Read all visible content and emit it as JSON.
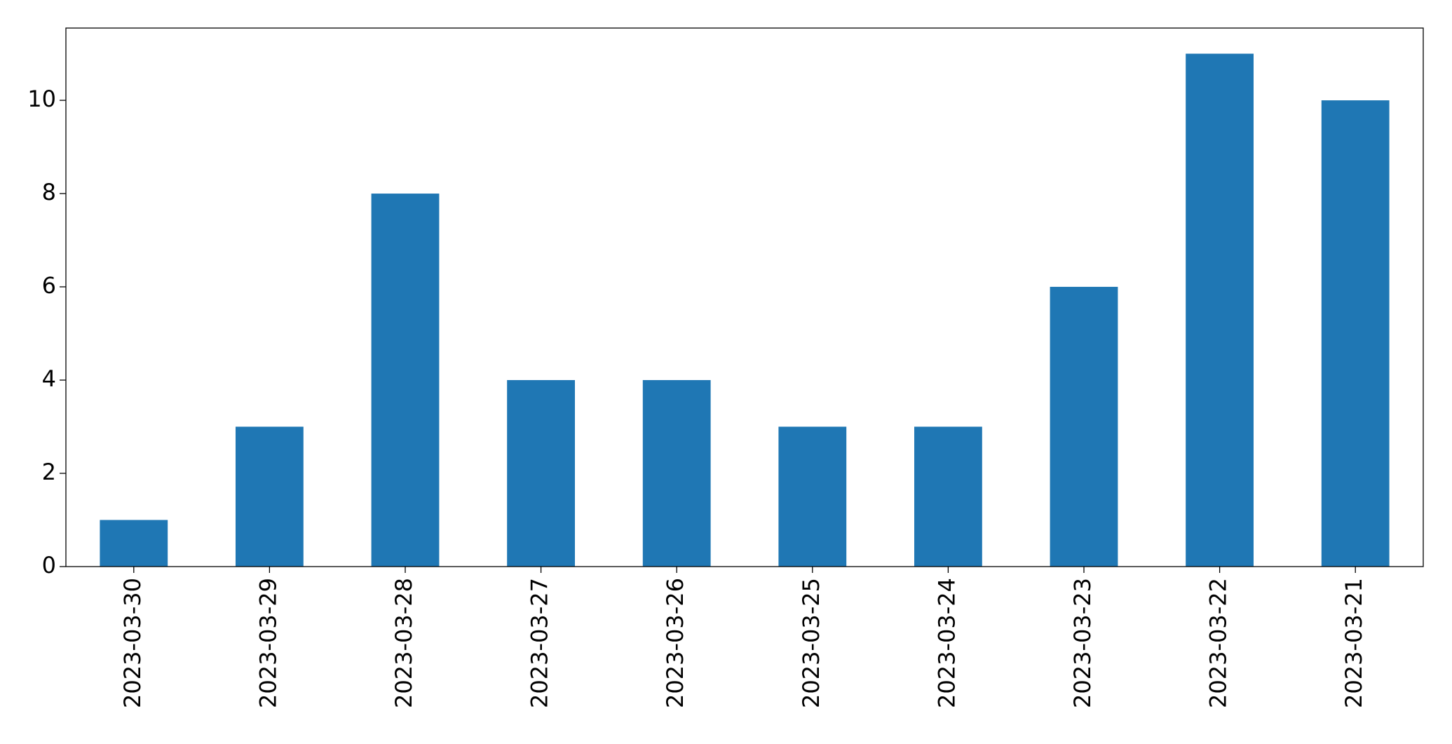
{
  "chart_data": {
    "type": "bar",
    "categories": [
      "2023-03-30",
      "2023-03-29",
      "2023-03-28",
      "2023-03-27",
      "2023-03-26",
      "2023-03-25",
      "2023-03-24",
      "2023-03-23",
      "2023-03-22",
      "2023-03-21"
    ],
    "values": [
      1,
      3,
      8,
      4,
      4,
      3,
      3,
      6,
      11,
      10
    ],
    "color": "#1f77b4",
    "ylim": [
      0,
      11.55
    ],
    "yticks": [
      0,
      2,
      4,
      6,
      8,
      10
    ]
  }
}
